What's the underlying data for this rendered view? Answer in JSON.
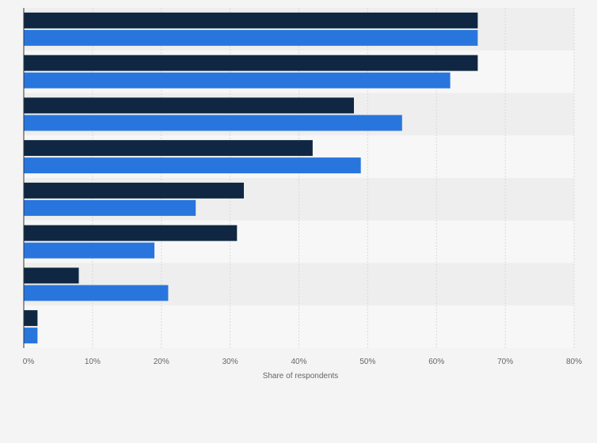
{
  "chart_data": {
    "type": "bar",
    "orientation": "horizontal",
    "categories": [
      "",
      "",
      "",
      "",
      "",
      "",
      "",
      ""
    ],
    "series": [
      {
        "color": "#0f2742",
        "values": [
          66,
          66,
          48,
          42,
          32,
          31,
          8,
          2
        ]
      },
      {
        "color": "#2876dd",
        "values": [
          66,
          62,
          55,
          49,
          25,
          19,
          21,
          2
        ]
      }
    ],
    "xlabel": "Share of respondents",
    "xlim": [
      0,
      80
    ],
    "xticks": [
      0,
      10,
      20,
      30,
      40,
      50,
      60,
      70,
      80
    ],
    "xtick_labels": [
      "0%",
      "10%",
      "20%",
      "30%",
      "40%",
      "50%",
      "60%",
      "70%",
      "80%"
    ],
    "grid": true,
    "legend": "none"
  },
  "colors": {
    "background": "#f4f4f4",
    "band_dark": "#eeeeee",
    "band_light": "#f7f7f7",
    "gridline": "#d9d9d9"
  }
}
